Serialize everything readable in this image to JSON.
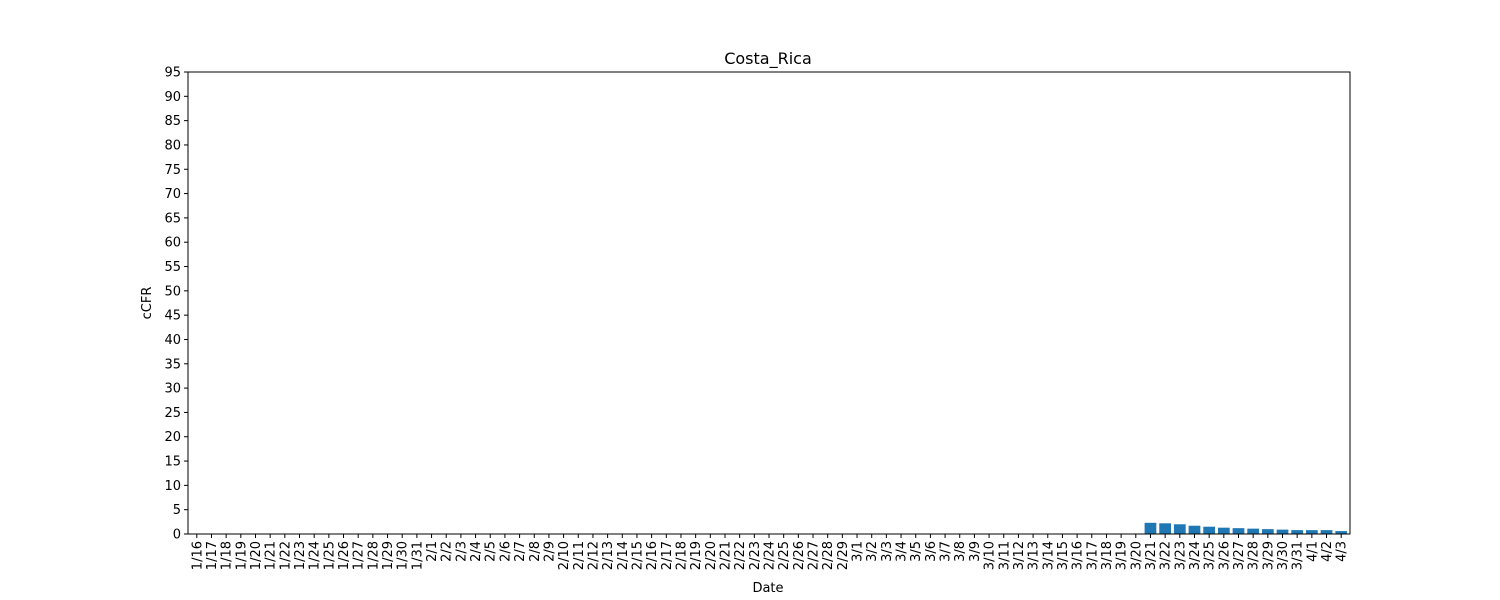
{
  "chart_data": {
    "type": "bar",
    "title": "Costa_Rica",
    "xlabel": "Date",
    "ylabel": "cCFR",
    "ylim": [
      0,
      95
    ],
    "yticks": [
      0,
      5,
      10,
      15,
      20,
      25,
      30,
      35,
      40,
      45,
      50,
      55,
      60,
      65,
      70,
      75,
      80,
      85,
      90,
      95
    ],
    "grid": false,
    "bar_color": "#1f77b4",
    "categories": [
      "1/16",
      "1/17",
      "1/18",
      "1/19",
      "1/20",
      "1/21",
      "1/22",
      "1/23",
      "1/24",
      "1/25",
      "1/26",
      "1/27",
      "1/28",
      "1/29",
      "1/30",
      "1/31",
      "2/1",
      "2/2",
      "2/3",
      "2/4",
      "2/5",
      "2/6",
      "2/7",
      "2/8",
      "2/9",
      "2/10",
      "2/11",
      "2/12",
      "2/13",
      "2/14",
      "2/15",
      "2/16",
      "2/17",
      "2/18",
      "2/19",
      "2/20",
      "2/21",
      "2/22",
      "2/23",
      "2/24",
      "2/25",
      "2/26",
      "2/27",
      "2/28",
      "2/29",
      "3/1",
      "3/2",
      "3/3",
      "3/4",
      "3/5",
      "3/6",
      "3/7",
      "3/8",
      "3/9",
      "3/10",
      "3/11",
      "3/12",
      "3/13",
      "3/14",
      "3/15",
      "3/16",
      "3/17",
      "3/18",
      "3/19",
      "3/20",
      "3/21",
      "3/22",
      "3/23",
      "3/24",
      "3/25",
      "3/26",
      "3/27",
      "3/28",
      "3/29",
      "3/30",
      "3/31",
      "4/1",
      "4/2",
      "4/3"
    ],
    "values": [
      0,
      0,
      0,
      0,
      0,
      0,
      0,
      0,
      0,
      0,
      0,
      0,
      0,
      0,
      0,
      0,
      0,
      0,
      0,
      0,
      0,
      0,
      0,
      0,
      0,
      0,
      0,
      0,
      0,
      0,
      0,
      0,
      0,
      0,
      0,
      0,
      0,
      0,
      0,
      0,
      0,
      0,
      0,
      0,
      0,
      0,
      0,
      0,
      0,
      0,
      0,
      0,
      0,
      0,
      0,
      0,
      0,
      0,
      0,
      0,
      0,
      0,
      0,
      0,
      0,
      2.3,
      2.2,
      2.0,
      1.7,
      1.5,
      1.3,
      1.2,
      1.1,
      1.0,
      0.9,
      0.8,
      0.8,
      0.8,
      0.6
    ]
  }
}
